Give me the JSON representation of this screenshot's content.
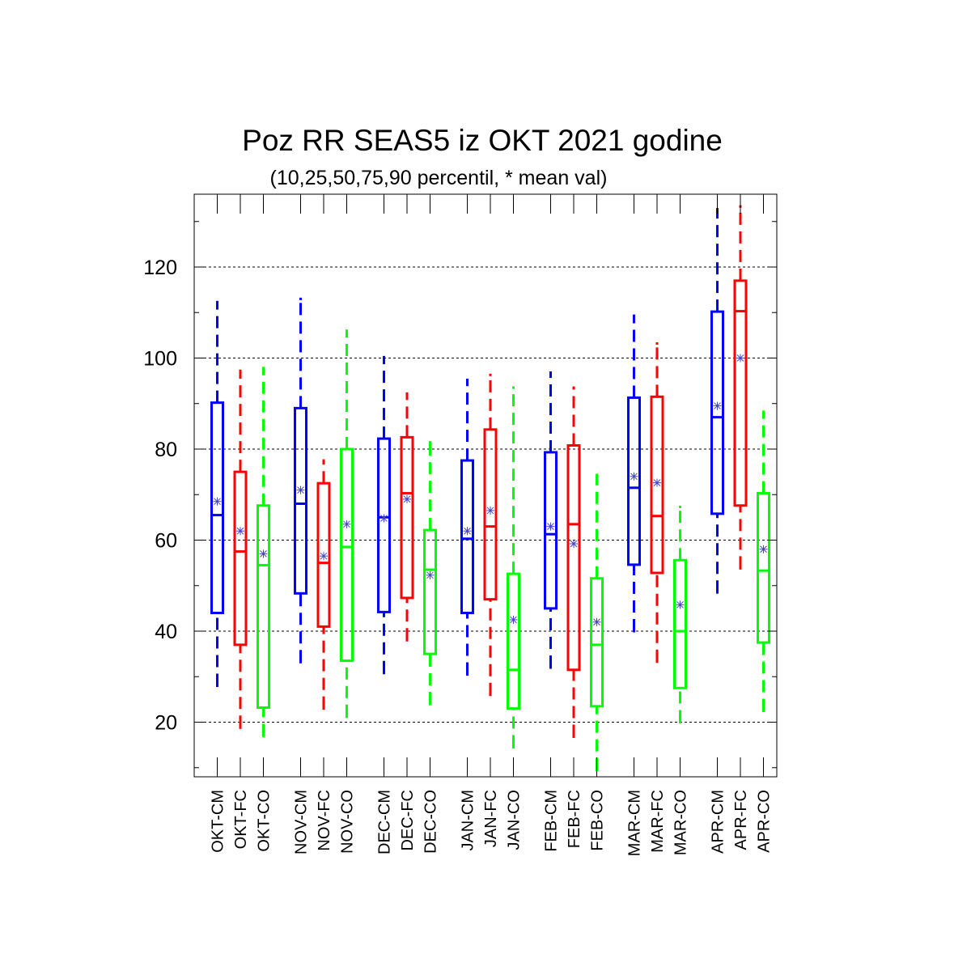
{
  "chart_data": {
    "type": "box",
    "title": "Poz RR SEAS5 iz OKT 2021 godine",
    "subtitle": "(10,25,50,75,90 percentil, * mean val)",
    "ylim": [
      8,
      136
    ],
    "yticks": [
      20,
      40,
      60,
      80,
      100,
      120
    ],
    "grid": "horizontal dashed at major y ticks",
    "colors": {
      "CM": "#0000ff",
      "FC": "#ff0000",
      "CO": "#00ff00",
      "mean_marker": "#4444cc"
    },
    "categories": [
      "OKT-CM",
      "OKT-FC",
      "OKT-CO",
      "NOV-CM",
      "NOV-FC",
      "NOV-CO",
      "DEC-CM",
      "DEC-FC",
      "DEC-CO",
      "JAN-CM",
      "JAN-FC",
      "JAN-CO",
      "FEB-CM",
      "FEB-FC",
      "FEB-CO",
      "MAR-CM",
      "MAR-FC",
      "MAR-CO",
      "APR-CM",
      "APR-FC",
      "APR-CO"
    ],
    "boxes": [
      {
        "label": "OKT-CM",
        "group": "CM",
        "p10": 28,
        "p25": 44,
        "p50": 65.5,
        "p75": 90.2,
        "p90": 112.3,
        "mean": 68.5
      },
      {
        "label": "OKT-FC",
        "group": "FC",
        "p10": 18.8,
        "p25": 37,
        "p50": 57.5,
        "p75": 75,
        "p90": 97.2,
        "mean": 62
      },
      {
        "label": "OKT-CO",
        "group": "CO",
        "p10": 17,
        "p25": 23.2,
        "p50": 54.5,
        "p75": 67.6,
        "p90": 97.8,
        "mean": 57
      },
      {
        "label": "NOV-CM",
        "group": "CM",
        "p10": 33.2,
        "p25": 48.3,
        "p50": 68,
        "p75": 89,
        "p90": 113,
        "mean": 71
      },
      {
        "label": "NOV-FC",
        "group": "FC",
        "p10": 23,
        "p25": 41,
        "p50": 55,
        "p75": 72.5,
        "p90": 77.5,
        "mean": 56.5
      },
      {
        "label": "NOV-CO",
        "group": "CO",
        "p10": 21.2,
        "p25": 33.5,
        "p50": 58.5,
        "p75": 80,
        "p90": 106,
        "mean": 63.5
      },
      {
        "label": "DEC-CM",
        "group": "CM",
        "p10": 30.8,
        "p25": 44.2,
        "p50": 65,
        "p75": 82.3,
        "p90": 100.2,
        "mean": 64.8
      },
      {
        "label": "DEC-FC",
        "group": "FC",
        "p10": 38,
        "p25": 47.3,
        "p50": 70.3,
        "p75": 82.6,
        "p90": 92.2,
        "mean": 69
      },
      {
        "label": "DEC-CO",
        "group": "CO",
        "p10": 24,
        "p25": 35,
        "p50": 53.5,
        "p75": 62.2,
        "p90": 81.5,
        "mean": 52.3
      },
      {
        "label": "JAN-CM",
        "group": "CM",
        "p10": 30.5,
        "p25": 44,
        "p50": 60.3,
        "p75": 77.5,
        "p90": 95.2,
        "mean": 62
      },
      {
        "label": "JAN-FC",
        "group": "FC",
        "p10": 26,
        "p25": 47,
        "p50": 63,
        "p75": 84.3,
        "p90": 96.3,
        "mean": 66.5
      },
      {
        "label": "JAN-CO",
        "group": "CO",
        "p10": 14.5,
        "p25": 23,
        "p50": 31.5,
        "p75": 52.6,
        "p90": 93.5,
        "mean": 42.5
      },
      {
        "label": "FEB-CM",
        "group": "CM",
        "p10": 32,
        "p25": 45,
        "p50": 61.3,
        "p75": 79.3,
        "p90": 96.8,
        "mean": 63
      },
      {
        "label": "FEB-FC",
        "group": "FC",
        "p10": 16.8,
        "p25": 31.5,
        "p50": 63.5,
        "p75": 80.8,
        "p90": 93.5,
        "mean": 59.2
      },
      {
        "label": "FEB-CO",
        "group": "CO",
        "p10": 9.5,
        "p25": 23.5,
        "p50": 37,
        "p75": 51.6,
        "p90": 74.3,
        "mean": 42
      },
      {
        "label": "MAR-CM",
        "group": "CM",
        "p10": 40,
        "p25": 54.6,
        "p50": 71.5,
        "p75": 91.3,
        "p90": 109.3,
        "mean": 74
      },
      {
        "label": "MAR-FC",
        "group": "FC",
        "p10": 33.3,
        "p25": 52.8,
        "p50": 65.3,
        "p75": 91.5,
        "p90": 103.2,
        "mean": 72.6
      },
      {
        "label": "MAR-CO",
        "group": "CO",
        "p10": 20,
        "p25": 27.5,
        "p50": 40,
        "p75": 55.6,
        "p90": 67.3,
        "mean": 45.8
      },
      {
        "label": "APR-CM",
        "group": "CM",
        "p10": 48.5,
        "p25": 65.8,
        "p50": 87,
        "p75": 110.2,
        "p90": 132.7,
        "mean": 89.5
      },
      {
        "label": "APR-FC",
        "group": "FC",
        "p10": 53.8,
        "p25": 67.6,
        "p50": 110.3,
        "p75": 117,
        "p90": 133.3,
        "mean": 100
      },
      {
        "label": "APR-CO",
        "group": "CO",
        "p10": 22.5,
        "p25": 37.5,
        "p50": 53.3,
        "p75": 70.3,
        "p90": 88.2,
        "mean": 58
      }
    ]
  }
}
